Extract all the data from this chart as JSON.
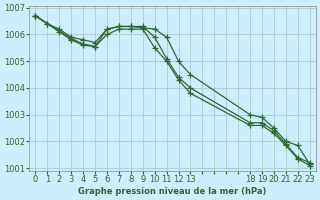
{
  "background_color": "#cceeff",
  "grid_color": "#aacccc",
  "line_color": "#2d6a2d",
  "title": "Graphe pression niveau de la mer (hPa)",
  "ylim": [
    1001,
    1007
  ],
  "yticks": [
    1001,
    1002,
    1003,
    1004,
    1005,
    1006,
    1007
  ],
  "xtick_labels": [
    "0",
    "1",
    "2",
    "3",
    "4",
    "5",
    "6",
    "7",
    "8",
    "9",
    "10",
    "11",
    "12",
    "13",
    "",
    "",
    "",
    "",
    "18",
    "19",
    "20",
    "21",
    "22",
    "23"
  ],
  "xtick_positions": [
    0,
    1,
    2,
    3,
    4,
    5,
    6,
    7,
    8,
    9,
    10,
    11,
    12,
    13,
    14,
    15,
    16,
    17,
    18,
    19,
    20,
    21,
    22,
    23
  ],
  "series1_x": [
    0,
    1,
    2,
    3,
    4,
    5,
    6,
    7,
    8,
    9,
    10,
    11,
    12,
    13,
    18,
    19,
    20,
    21,
    22,
    23
  ],
  "series1_y": [
    1006.7,
    1006.4,
    1006.2,
    1005.9,
    1005.8,
    1005.7,
    1006.2,
    1006.3,
    1006.3,
    1006.3,
    1005.9,
    1005.1,
    1004.4,
    1004.0,
    1002.7,
    1002.7,
    1002.4,
    1001.9,
    1001.4,
    1001.2
  ],
  "series2_x": [
    0,
    1,
    2,
    3,
    4,
    5,
    6,
    7,
    8,
    9,
    10,
    11,
    12,
    13,
    18,
    19,
    20,
    21,
    22,
    23
  ],
  "series2_y": [
    1006.7,
    1006.4,
    1006.1,
    1005.8,
    1005.6,
    1005.55,
    1006.0,
    1006.2,
    1006.2,
    1006.2,
    1005.5,
    1005.0,
    1004.3,
    1003.8,
    1002.6,
    1002.6,
    1002.3,
    1001.85,
    1001.35,
    1001.1
  ],
  "series3_x": [
    0,
    3,
    4,
    5,
    6,
    7,
    8,
    9,
    10,
    11,
    12,
    13,
    18,
    19,
    20,
    21,
    22,
    23
  ],
  "series3_y": [
    1006.7,
    1005.85,
    1005.65,
    1005.55,
    1006.2,
    1006.3,
    1006.3,
    1006.25,
    1006.2,
    1005.9,
    1005.0,
    1004.5,
    1003.0,
    1002.9,
    1002.5,
    1002.0,
    1001.85,
    1001.15
  ]
}
